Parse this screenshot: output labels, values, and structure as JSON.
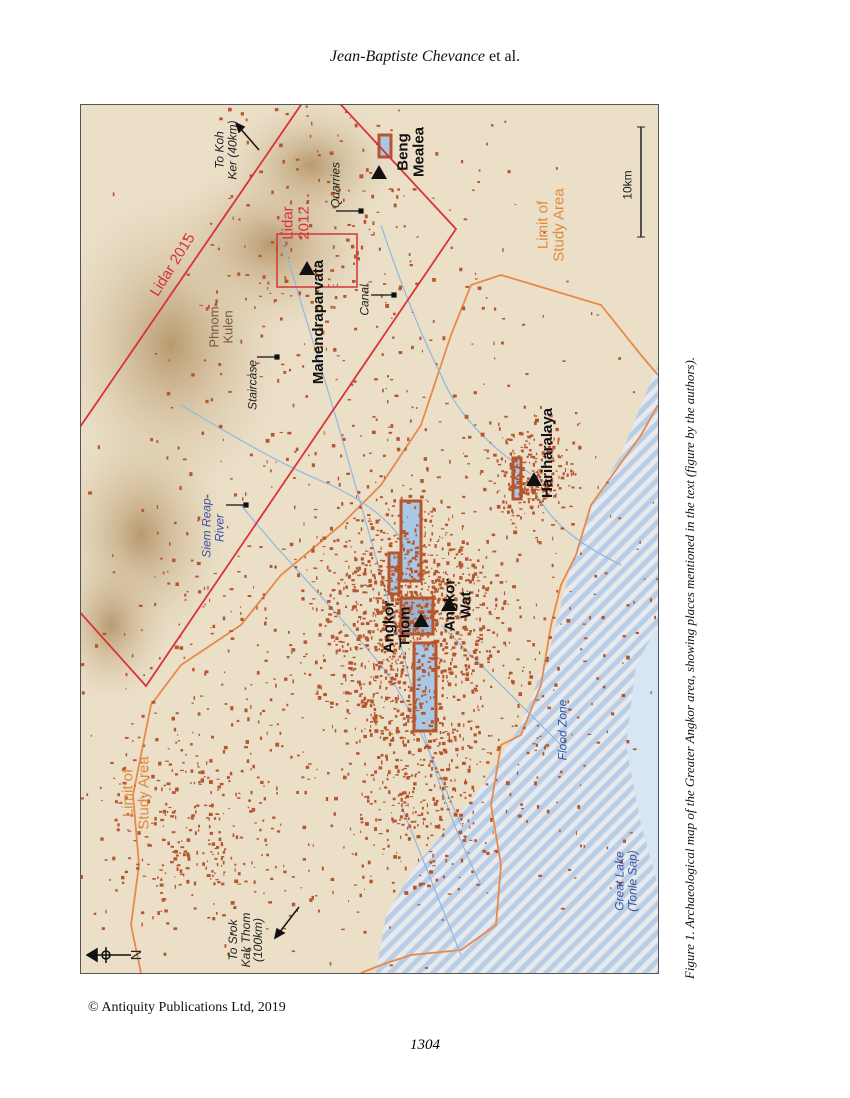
{
  "header": {
    "author": "Jean-Baptiste Chevance",
    "suffix": "et al."
  },
  "map": {
    "labels": {
      "to_koh_ker": "To Koh\nKer (40km)",
      "lidar_2015": "Lidar 2015",
      "lidar_2012": "Lidar\n2012",
      "quarries": "Quarries",
      "beng_mealea": "Beng\nMealea",
      "scale": "10km",
      "limit_study_area_top": "Limit of\nStudy Area",
      "phnom_kulen": "Phnom\nKulen",
      "mahendraparvata": "Mahendraparvata",
      "canal": "Canal",
      "staircase": "Staircase",
      "hariharalaya": "Hariharalaya",
      "siem_reap_river": "Siem Reap\nRiver",
      "angkor_thom": "Angkor\nThom",
      "angkor_wat": "Angkor\nWat",
      "limit_study_area_bottom": "Limit of\nStudy Area",
      "flood_zone": "Flood Zone",
      "great_lake": "Great Lake\n(Tonle Sap)",
      "to_srok_kak_thom": "To Srok\nKak Thom\n(100km)",
      "north": "N"
    },
    "colors": {
      "lidar": "#d8333a",
      "study_area": "#e8894a",
      "water": "#8fb8e0",
      "sites": "#b5562e",
      "flood_hatch": "#b9cde4",
      "terrain": "#c9b08a"
    }
  },
  "caption": "Figure 1. Archaeological map of the Greater Angkor area, showing places mentioned in the text (figure by the authors).",
  "footer": {
    "copyright": "© Antiquity Publications Ltd, 2019",
    "page_number": "1304"
  }
}
